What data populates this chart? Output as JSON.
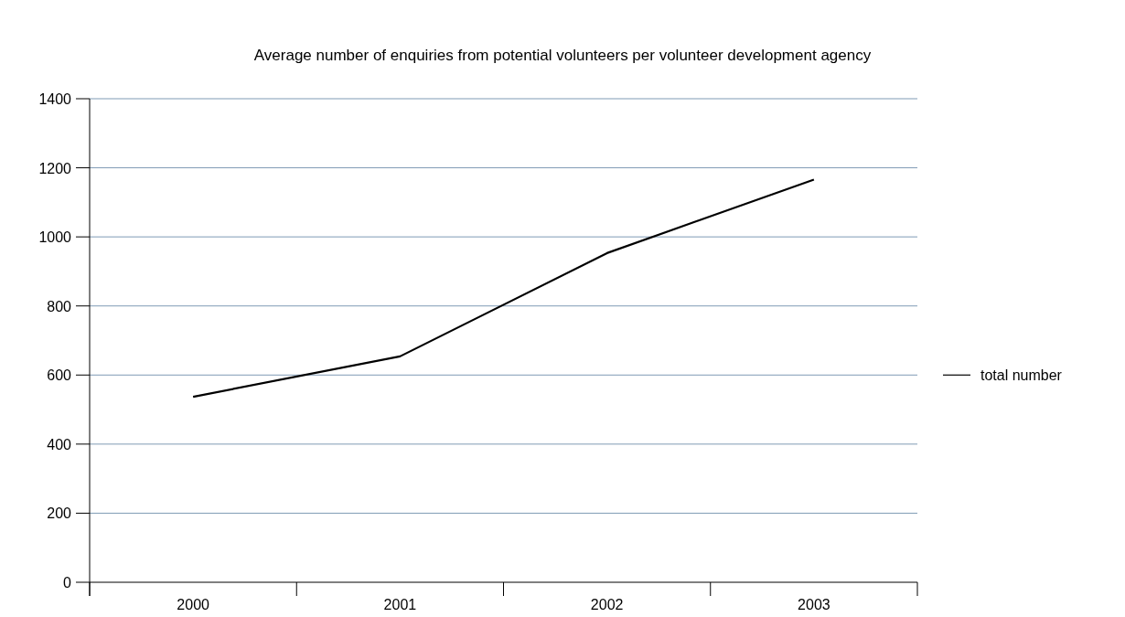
{
  "chart_data": {
    "type": "line",
    "title": "Average number of enquiries from potential volunteers per volunteer development agency",
    "categories": [
      "2000",
      "2001",
      "2002",
      "2003"
    ],
    "series": [
      {
        "name": "total number",
        "color": "#000000",
        "values": [
          537,
          654,
          953,
          1166
        ]
      }
    ],
    "ylim": [
      0,
      1400
    ],
    "yticks": [
      0,
      200,
      400,
      600,
      800,
      1000,
      1200,
      1400
    ],
    "grid": "y",
    "legend": "right",
    "marker": "none",
    "line_style": "solid"
  }
}
